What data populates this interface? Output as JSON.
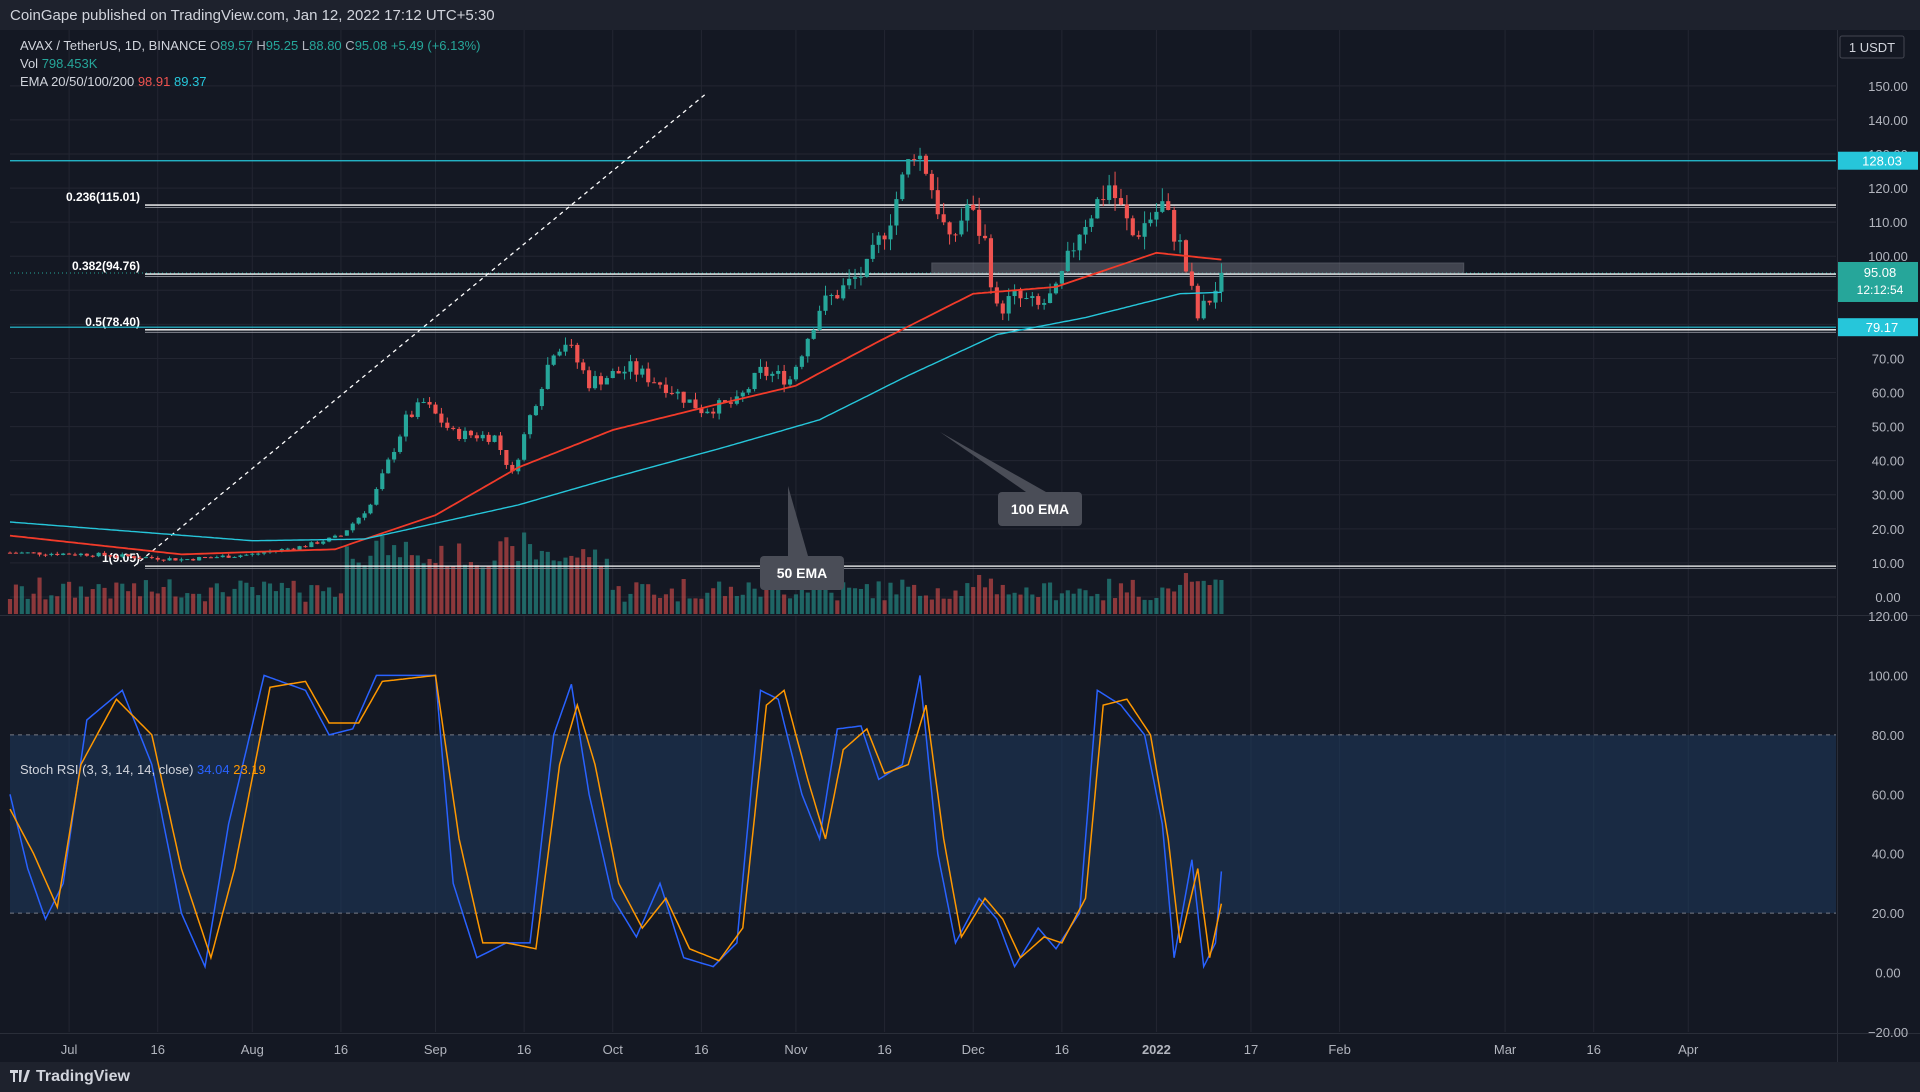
{
  "header": {
    "publisher_text": "CoinGape published on TradingView.com, Jan 12, 2022 17:12 UTC+5:30"
  },
  "footer": {
    "brand": "TradingView"
  },
  "legend": {
    "symbol": "AVAX / TetherUS, 1D, BINANCE",
    "open_label": "O",
    "open": "89.57",
    "high_label": "H",
    "high": "95.25",
    "low_label": "L",
    "low": "88.80",
    "close_label": "C",
    "close": "95.08",
    "change": "+5.49 (+6.13%)",
    "vol_label": "Vol",
    "vol": "798.453K",
    "ema_label": "EMA 20/50/100/200",
    "ema_1": "98.91",
    "ema_2": "89.37",
    "stoch_label": "Stoch RSI (3, 3, 14, 14, close)",
    "stoch_k": "34.04",
    "stoch_d": "23.19"
  },
  "price_axis": {
    "currency_badge": "1 USDT",
    "last_price": "95.08",
    "countdown": "12:12:54",
    "marker_top": "128.03",
    "marker_bottom": "79.17"
  },
  "annotations": {
    "ema50": "50 EMA",
    "ema100": "100 EMA",
    "fib_0236": "0.236(115.01)",
    "fib_0382": "0.382(94.76)",
    "fib_05": "0.5(78.40)",
    "fib_1": "1(9.05)"
  },
  "colors": {
    "background": "#141823",
    "up": "#26a69a",
    "down": "#ef5350",
    "ema50": "#f23b2a",
    "ema100": "#26c6da",
    "stoch_k": "#2962ff",
    "stoch_d": "#ff9800",
    "resistance": "#26c6da",
    "grid": "#232632"
  },
  "chart_data": [
    {
      "type": "candlestick",
      "title": "AVAX / TetherUS, 1D, BINANCE",
      "x_start": "2021-06-21",
      "x_ticks": [
        {
          "date": "2021-07-01",
          "label": "Jul"
        },
        {
          "date": "2021-07-16",
          "label": "16"
        },
        {
          "date": "2021-08-01",
          "label": "Aug"
        },
        {
          "date": "2021-08-16",
          "label": "16"
        },
        {
          "date": "2021-09-01",
          "label": "Sep"
        },
        {
          "date": "2021-09-16",
          "label": "16"
        },
        {
          "date": "2021-10-01",
          "label": "Oct"
        },
        {
          "date": "2021-10-16",
          "label": "16"
        },
        {
          "date": "2021-11-01",
          "label": "Nov"
        },
        {
          "date": "2021-11-16",
          "label": "16"
        },
        {
          "date": "2021-12-01",
          "label": "Dec"
        },
        {
          "date": "2021-12-16",
          "label": "16"
        },
        {
          "date": "2022-01-01",
          "label": "2022"
        },
        {
          "date": "2022-01-17",
          "label": "17"
        },
        {
          "date": "2022-02-01",
          "label": "Feb"
        },
        {
          "date": "2022-03-01",
          "label": "Mar"
        },
        {
          "date": "2022-03-16",
          "label": "16"
        },
        {
          "date": "2022-04-01",
          "label": "Apr"
        }
      ],
      "x_range": [
        "2021-06-21",
        "2022-04-26"
      ],
      "ylim": [
        -5,
        157
      ],
      "y_ticks": [
        150,
        140,
        130,
        120,
        110,
        100,
        90,
        80,
        70,
        60,
        50,
        40,
        30,
        20,
        10,
        0
      ],
      "y_tick_labels": [
        "150.00",
        "140.00",
        "130.00",
        "120.00",
        "110.00",
        "100.00",
        "90.00",
        "80.00",
        "70.00",
        "60.00",
        "50.00",
        "40.00",
        "30.00",
        "20.00",
        "10.00",
        "0.00"
      ],
      "price_anchors": [
        {
          "date": "2021-06-21",
          "close": 13
        },
        {
          "date": "2021-07-05",
          "close": 12.5
        },
        {
          "date": "2021-07-20",
          "close": 11
        },
        {
          "date": "2021-08-01",
          "close": 12.5
        },
        {
          "date": "2021-08-10",
          "close": 15
        },
        {
          "date": "2021-08-16",
          "close": 18
        },
        {
          "date": "2021-08-21",
          "close": 27
        },
        {
          "date": "2021-08-27",
          "close": 52
        },
        {
          "date": "2021-08-30",
          "close": 57
        },
        {
          "date": "2021-09-04",
          "close": 48
        },
        {
          "date": "2021-09-11",
          "close": 47
        },
        {
          "date": "2021-09-14",
          "close": 36
        },
        {
          "date": "2021-09-17",
          "close": 53
        },
        {
          "date": "2021-09-21",
          "close": 73
        },
        {
          "date": "2021-09-23",
          "close": 75
        },
        {
          "date": "2021-09-27",
          "close": 63
        },
        {
          "date": "2021-10-04",
          "close": 67
        },
        {
          "date": "2021-10-10",
          "close": 62
        },
        {
          "date": "2021-10-16",
          "close": 55
        },
        {
          "date": "2021-10-22",
          "close": 57
        },
        {
          "date": "2021-10-26",
          "close": 66
        },
        {
          "date": "2021-10-31",
          "close": 64
        },
        {
          "date": "2021-11-05",
          "close": 85
        },
        {
          "date": "2021-11-10",
          "close": 92
        },
        {
          "date": "2021-11-13",
          "close": 96
        },
        {
          "date": "2021-11-17",
          "close": 112
        },
        {
          "date": "2021-11-21",
          "close": 132
        },
        {
          "date": "2021-11-23",
          "close": 126
        },
        {
          "date": "2021-11-27",
          "close": 103
        },
        {
          "date": "2021-11-30",
          "close": 115
        },
        {
          "date": "2021-12-03",
          "close": 104
        },
        {
          "date": "2021-12-05",
          "close": 84
        },
        {
          "date": "2021-12-08",
          "close": 88
        },
        {
          "date": "2021-12-12",
          "close": 85
        },
        {
          "date": "2021-12-15",
          "close": 89
        },
        {
          "date": "2021-12-19",
          "close": 108
        },
        {
          "date": "2021-12-24",
          "close": 121
        },
        {
          "date": "2021-12-28",
          "close": 106
        },
        {
          "date": "2022-01-02",
          "close": 115
        },
        {
          "date": "2022-01-05",
          "close": 103
        },
        {
          "date": "2022-01-08",
          "close": 82
        },
        {
          "date": "2022-01-11",
          "close": 90
        },
        {
          "date": "2022-01-12",
          "close": 95.08
        }
      ],
      "ema_anchors": {
        "ema50": [
          {
            "date": "2021-06-21",
            "value": 18
          },
          {
            "date": "2021-07-20",
            "value": 12.5
          },
          {
            "date": "2021-08-15",
            "value": 14
          },
          {
            "date": "2021-09-01",
            "value": 24
          },
          {
            "date": "2021-09-15",
            "value": 38
          },
          {
            "date": "2021-10-01",
            "value": 49
          },
          {
            "date": "2021-10-15",
            "value": 55
          },
          {
            "date": "2021-11-01",
            "value": 62
          },
          {
            "date": "2021-11-15",
            "value": 75
          },
          {
            "date": "2021-12-01",
            "value": 89
          },
          {
            "date": "2021-12-15",
            "value": 91
          },
          {
            "date": "2022-01-01",
            "value": 101
          },
          {
            "date": "2022-01-12",
            "value": 99
          }
        ],
        "ema100": [
          {
            "date": "2021-06-21",
            "value": 22
          },
          {
            "date": "2021-08-01",
            "value": 16.5
          },
          {
            "date": "2021-08-20",
            "value": 17
          },
          {
            "date": "2021-09-15",
            "value": 27
          },
          {
            "date": "2021-10-01",
            "value": 35
          },
          {
            "date": "2021-10-20",
            "value": 44
          },
          {
            "date": "2021-11-05",
            "value": 52
          },
          {
            "date": "2021-11-20",
            "value": 65
          },
          {
            "date": "2021-12-05",
            "value": 77
          },
          {
            "date": "2021-12-20",
            "value": 82
          },
          {
            "date": "2022-01-05",
            "value": 89
          },
          {
            "date": "2022-01-12",
            "value": 89.4
          }
        ]
      },
      "horizontal_levels": [
        {
          "name": "fib_0236",
          "value": 115.01
        },
        {
          "name": "fib_0382",
          "value": 94.76
        },
        {
          "name": "fib_05",
          "value": 78.4
        },
        {
          "name": "fib_1",
          "value": 9.05
        },
        {
          "name": "resistance_top",
          "value": 128.03
        },
        {
          "name": "support",
          "value": 79.17
        }
      ],
      "zone": {
        "from_date": "2021-11-24",
        "to_date": "2022-02-22",
        "low": 95,
        "high": 98
      }
    },
    {
      "type": "line",
      "title": "Stoch RSI (3, 3, 14, 14, close)",
      "ylim": [
        -20,
        120
      ],
      "y_ticks": [
        120,
        100,
        80,
        60,
        40,
        20,
        0,
        -20
      ],
      "y_tick_labels": [
        "120.00",
        "100.00",
        "80.00",
        "60.00",
        "40.00",
        "20.00",
        "0.00",
        "−20.00"
      ],
      "band": [
        20,
        80
      ],
      "series": [
        {
          "name": "K",
          "anchors": [
            {
              "date": "2021-06-21",
              "v": 60
            },
            {
              "date": "2021-06-24",
              "v": 35
            },
            {
              "date": "2021-06-27",
              "v": 18
            },
            {
              "date": "2021-06-30",
              "v": 30
            },
            {
              "date": "2021-07-04",
              "v": 85
            },
            {
              "date": "2021-07-10",
              "v": 95
            },
            {
              "date": "2021-07-15",
              "v": 70
            },
            {
              "date": "2021-07-20",
              "v": 20
            },
            {
              "date": "2021-07-24",
              "v": 2
            },
            {
              "date": "2021-07-28",
              "v": 50
            },
            {
              "date": "2021-08-03",
              "v": 100
            },
            {
              "date": "2021-08-10",
              "v": 95
            },
            {
              "date": "2021-08-14",
              "v": 80
            },
            {
              "date": "2021-08-18",
              "v": 82
            },
            {
              "date": "2021-08-22",
              "v": 100
            },
            {
              "date": "2021-09-01",
              "v": 100
            },
            {
              "date": "2021-09-04",
              "v": 30
            },
            {
              "date": "2021-09-08",
              "v": 5
            },
            {
              "date": "2021-09-13",
              "v": 10
            },
            {
              "date": "2021-09-17",
              "v": 10
            },
            {
              "date": "2021-09-21",
              "v": 80
            },
            {
              "date": "2021-09-24",
              "v": 97
            },
            {
              "date": "2021-09-27",
              "v": 60
            },
            {
              "date": "2021-10-01",
              "v": 25
            },
            {
              "date": "2021-10-05",
              "v": 12
            },
            {
              "date": "2021-10-09",
              "v": 30
            },
            {
              "date": "2021-10-13",
              "v": 5
            },
            {
              "date": "2021-10-18",
              "v": 2
            },
            {
              "date": "2021-10-22",
              "v": 10
            },
            {
              "date": "2021-10-26",
              "v": 95
            },
            {
              "date": "2021-10-29",
              "v": 92
            },
            {
              "date": "2021-11-02",
              "v": 60
            },
            {
              "date": "2021-11-05",
              "v": 45
            },
            {
              "date": "2021-11-08",
              "v": 82
            },
            {
              "date": "2021-11-12",
              "v": 83
            },
            {
              "date": "2021-11-15",
              "v": 65
            },
            {
              "date": "2021-11-19",
              "v": 70
            },
            {
              "date": "2021-11-22",
              "v": 100
            },
            {
              "date": "2021-11-25",
              "v": 40
            },
            {
              "date": "2021-11-28",
              "v": 10
            },
            {
              "date": "2021-12-02",
              "v": 25
            },
            {
              "date": "2021-12-05",
              "v": 18
            },
            {
              "date": "2021-12-08",
              "v": 2
            },
            {
              "date": "2021-12-12",
              "v": 15
            },
            {
              "date": "2021-12-15",
              "v": 8
            },
            {
              "date": "2021-12-19",
              "v": 20
            },
            {
              "date": "2021-12-22",
              "v": 95
            },
            {
              "date": "2021-12-26",
              "v": 90
            },
            {
              "date": "2021-12-30",
              "v": 80
            },
            {
              "date": "2022-01-02",
              "v": 50
            },
            {
              "date": "2022-01-04",
              "v": 5
            },
            {
              "date": "2022-01-07",
              "v": 38
            },
            {
              "date": "2022-01-09",
              "v": 2
            },
            {
              "date": "2022-01-11",
              "v": 10
            },
            {
              "date": "2022-01-12",
              "v": 34.04
            }
          ]
        },
        {
          "name": "D",
          "anchors": [
            {
              "date": "2021-06-21",
              "v": 55
            },
            {
              "date": "2021-06-25",
              "v": 40
            },
            {
              "date": "2021-06-29",
              "v": 22
            },
            {
              "date": "2021-07-03",
              "v": 70
            },
            {
              "date": "2021-07-09",
              "v": 92
            },
            {
              "date": "2021-07-15",
              "v": 80
            },
            {
              "date": "2021-07-20",
              "v": 35
            },
            {
              "date": "2021-07-25",
              "v": 5
            },
            {
              "date": "2021-07-29",
              "v": 35
            },
            {
              "date": "2021-08-04",
              "v": 96
            },
            {
              "date": "2021-08-10",
              "v": 98
            },
            {
              "date": "2021-08-14",
              "v": 84
            },
            {
              "date": "2021-08-19",
              "v": 84
            },
            {
              "date": "2021-08-23",
              "v": 98
            },
            {
              "date": "2021-09-01",
              "v": 100
            },
            {
              "date": "2021-09-05",
              "v": 45
            },
            {
              "date": "2021-09-09",
              "v": 10
            },
            {
              "date": "2021-09-13",
              "v": 10
            },
            {
              "date": "2021-09-18",
              "v": 8
            },
            {
              "date": "2021-09-22",
              "v": 70
            },
            {
              "date": "2021-09-25",
              "v": 90
            },
            {
              "date": "2021-09-28",
              "v": 70
            },
            {
              "date": "2021-10-02",
              "v": 30
            },
            {
              "date": "2021-10-06",
              "v": 15
            },
            {
              "date": "2021-10-10",
              "v": 25
            },
            {
              "date": "2021-10-14",
              "v": 8
            },
            {
              "date": "2021-10-19",
              "v": 4
            },
            {
              "date": "2021-10-23",
              "v": 15
            },
            {
              "date": "2021-10-27",
              "v": 90
            },
            {
              "date": "2021-10-30",
              "v": 95
            },
            {
              "date": "2021-11-03",
              "v": 65
            },
            {
              "date": "2021-11-06",
              "v": 45
            },
            {
              "date": "2021-11-09",
              "v": 75
            },
            {
              "date": "2021-11-13",
              "v": 82
            },
            {
              "date": "2021-11-16",
              "v": 67
            },
            {
              "date": "2021-11-20",
              "v": 70
            },
            {
              "date": "2021-11-23",
              "v": 90
            },
            {
              "date": "2021-11-26",
              "v": 45
            },
            {
              "date": "2021-11-29",
              "v": 12
            },
            {
              "date": "2021-12-03",
              "v": 25
            },
            {
              "date": "2021-12-06",
              "v": 18
            },
            {
              "date": "2021-12-09",
              "v": 5
            },
            {
              "date": "2021-12-13",
              "v": 12
            },
            {
              "date": "2021-12-16",
              "v": 10
            },
            {
              "date": "2021-12-20",
              "v": 25
            },
            {
              "date": "2021-12-23",
              "v": 90
            },
            {
              "date": "2021-12-27",
              "v": 92
            },
            {
              "date": "2021-12-31",
              "v": 80
            },
            {
              "date": "2022-01-03",
              "v": 45
            },
            {
              "date": "2022-01-05",
              "v": 10
            },
            {
              "date": "2022-01-08",
              "v": 35
            },
            {
              "date": "2022-01-10",
              "v": 5
            },
            {
              "date": "2022-01-12",
              "v": 23.19
            }
          ]
        }
      ]
    }
  ]
}
